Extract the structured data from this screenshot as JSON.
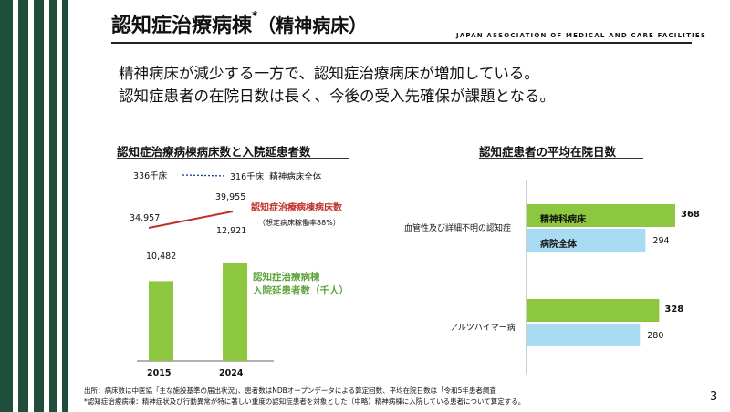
{
  "header": {
    "title": "認知症治療病棟",
    "title_mark": "*",
    "title_sub": "（精神病床）",
    "org": "JAPAN ASSOCIATION OF MEDICAL AND CARE FACILITIES"
  },
  "lead": {
    "line1": "精神病床が減少する一方で、認知症治療病床が増加している。",
    "line2": "認知症患者の在院日数は長く、今後の受入先確保が課題となる。"
  },
  "left_chart": {
    "title": "認知症治療病棟病床数と入院延患者数",
    "psych_2015": "336千床",
    "psych_2024": "316千床",
    "psych_legend": "精神病床全体",
    "beds_2015": "34,957",
    "beds_2024": "39,955",
    "beds_legend": "認知症治療病棟病床数",
    "beds_note": "（想定病床稼働率88%）",
    "pat_2015": "10,482",
    "pat_2024": "12,921",
    "pat_legend_1": "認知症治療病棟",
    "pat_legend_2": "入院延患者数（千人）",
    "year_1": "2015",
    "year_2": "2024"
  },
  "right_chart": {
    "title": "認知症患者の平均在院日数",
    "cat_1": "血管性及び詳細不明の認知症",
    "cat_2": "アルツハイマー病",
    "series_1": "精神科病床",
    "series_2": "病院全体",
    "v11": "368",
    "v12": "294",
    "v21": "328",
    "v22": "280"
  },
  "chart_data": [
    {
      "type": "bar",
      "title": "認知症治療病棟病床数と入院延患者数",
      "categories": [
        "2015",
        "2024"
      ],
      "series": [
        {
          "name": "認知症治療病棟入院延患者数（千人）",
          "values": [
            10482,
            12921
          ],
          "color": "#8dc63f"
        },
        {
          "name": "認知症治療病棟病床数",
          "type": "line",
          "values": [
            34957,
            39955
          ],
          "color": "#c0302b"
        },
        {
          "name": "精神病床全体（千床）",
          "type": "line",
          "values": [
            336,
            316
          ],
          "color": "#1a3fa0"
        }
      ]
    },
    {
      "type": "bar",
      "orientation": "horizontal",
      "title": "認知症患者の平均在院日数",
      "categories": [
        "血管性及び詳細不明の認知症",
        "アルツハイマー病"
      ],
      "series": [
        {
          "name": "精神科病床",
          "values": [
            368,
            328
          ],
          "color": "#8dc63f"
        },
        {
          "name": "病院全体",
          "values": [
            294,
            280
          ],
          "color": "#a9dcf3"
        }
      ]
    }
  ],
  "footnotes": {
    "line1": "出所：病床数は中医協「主な施設基準の届出状況」、患者数はNDBオープンデータによる算定回数、平均在院日数は「令和5年患者調査",
    "line2": "*認知症治療病棟：精神症状及び行動異常が特に著しい重度の認知症患者を対象とした（中略）精神病棟に入院している患者について算定する。"
  },
  "page_number": "3"
}
